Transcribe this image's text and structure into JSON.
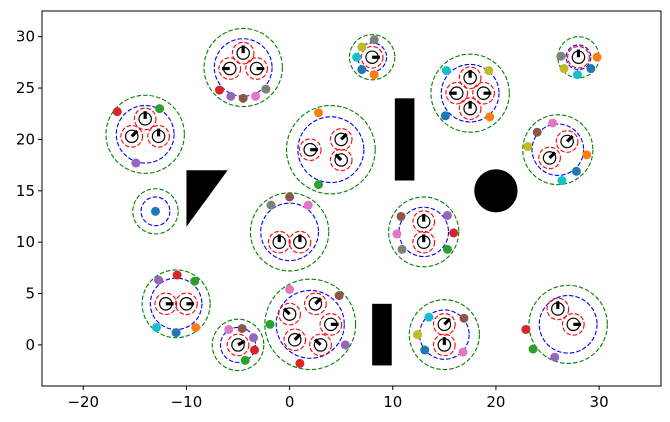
{
  "chart_data": {
    "type": "scatter",
    "title": "",
    "xlabel": "",
    "ylabel": "",
    "xlim": [
      -24,
      36
    ],
    "ylim": [
      -4,
      32.5
    ],
    "grid": false,
    "xticks": [
      -20,
      -10,
      0,
      10,
      20,
      30
    ],
    "yticks": [
      0,
      5,
      10,
      15,
      20,
      25,
      30
    ],
    "colors": {
      "outer_ring": "#008000",
      "inner_ring": "#0000ff",
      "sub_ring": "#ff0000",
      "obstacle": "#000000",
      "center_dot": "#1f77b4"
    },
    "clusters": [
      {
        "x": -4.5,
        "y": 27,
        "r_outer": 3.8,
        "r_inner": 2.8,
        "subs": [
          [
            -4.5,
            28.4,
            90
          ],
          [
            -5.8,
            26.9,
            180
          ],
          [
            -3.2,
            26.9,
            0
          ]
        ]
      },
      {
        "x": 8,
        "y": 28,
        "r_outer": 2.2,
        "r_inner": 1.4,
        "subs": [
          [
            8,
            28,
            0
          ]
        ]
      },
      {
        "x": 28,
        "y": 28,
        "r_outer": 2.0,
        "r_inner": 1.2,
        "subs": [
          [
            28,
            28,
            90
          ]
        ]
      },
      {
        "x": 17.5,
        "y": 24.5,
        "r_outer": 3.8,
        "r_inner": 2.8,
        "subs": [
          [
            17.5,
            26,
            90
          ],
          [
            16.2,
            24.5,
            180
          ],
          [
            18.8,
            24.5,
            0
          ],
          [
            17.5,
            23,
            90
          ]
        ]
      },
      {
        "x": -14,
        "y": 20.5,
        "r_outer": 3.8,
        "r_inner": 2.8,
        "subs": [
          [
            -14,
            22,
            90
          ],
          [
            -15.3,
            20.3,
            45
          ],
          [
            -12.7,
            20.3,
            90
          ]
        ]
      },
      {
        "x": 4,
        "y": 19,
        "r_outer": 4.3,
        "r_inner": 3.2,
        "subs": [
          [
            5,
            20,
            45
          ],
          [
            2,
            19,
            0
          ],
          [
            5,
            18,
            135
          ]
        ]
      },
      {
        "x": 26,
        "y": 19,
        "r_outer": 3.4,
        "r_inner": 2.5,
        "subs": [
          [
            25.2,
            18.2,
            45
          ],
          [
            26.9,
            19.8,
            45
          ]
        ]
      },
      {
        "x": -13,
        "y": 13,
        "r_outer": 2.2,
        "r_inner": 1.4,
        "subs": []
      },
      {
        "x": 0,
        "y": 11,
        "r_outer": 3.8,
        "r_inner": 2.8,
        "subs": [
          [
            -1,
            10,
            90
          ],
          [
            1,
            10,
            90
          ]
        ]
      },
      {
        "x": 13,
        "y": 11,
        "r_outer": 3.4,
        "r_inner": 2.4,
        "subs": [
          [
            13,
            12,
            90
          ],
          [
            13,
            10,
            90
          ]
        ]
      },
      {
        "x": -11,
        "y": 4,
        "r_outer": 3.3,
        "r_inner": 2.5,
        "subs": [
          [
            -12,
            4,
            0
          ],
          [
            -10,
            4,
            0
          ]
        ]
      },
      {
        "x": 2,
        "y": 2,
        "r_outer": 4.4,
        "r_inner": 3.3,
        "subs": [
          [
            0,
            3,
            135
          ],
          [
            2.5,
            4,
            45
          ],
          [
            4,
            2,
            0
          ],
          [
            0.5,
            0.5,
            45
          ],
          [
            3,
            0,
            135
          ]
        ]
      },
      {
        "x": 15,
        "y": 1,
        "r_outer": 3.4,
        "r_inner": 2.4,
        "subs": [
          [
            15,
            2,
            45
          ],
          [
            15,
            0,
            90
          ]
        ]
      },
      {
        "x": 27,
        "y": 2,
        "r_outer": 3.8,
        "r_inner": 2.8,
        "subs": [
          [
            26,
            3.5,
            90
          ],
          [
            27.5,
            2,
            0
          ]
        ]
      },
      {
        "x": -5,
        "y": 0,
        "r_outer": 2.5,
        "r_inner": 1.7,
        "subs": [
          [
            -5,
            0,
            30
          ]
        ]
      }
    ],
    "obstacles": [
      {
        "shape": "rect",
        "x0": 10.2,
        "x1": 12.1,
        "y0": 16,
        "y1": 24
      },
      {
        "shape": "rect",
        "x0": 8.0,
        "x1": 9.9,
        "y0": -2,
        "y1": 4
      },
      {
        "shape": "circle",
        "cx": 20,
        "cy": 15,
        "r": 2.1
      },
      {
        "shape": "polygon",
        "points": [
          [
            -10,
            17
          ],
          [
            -6,
            17
          ],
          [
            -10,
            11.5
          ]
        ]
      }
    ],
    "dots": [
      {
        "x": -6.8,
        "y": 24.8,
        "c": "#d62728"
      },
      {
        "x": -5.7,
        "y": 24.2,
        "c": "#9467bd"
      },
      {
        "x": -4.5,
        "y": 24.0,
        "c": "#8c564b"
      },
      {
        "x": -3.3,
        "y": 24.2,
        "c": "#e377c2"
      },
      {
        "x": -2.3,
        "y": 24.9,
        "c": "#7f7f7f"
      },
      {
        "x": 7.0,
        "y": 29.0,
        "c": "#bcbd22"
      },
      {
        "x": 8.2,
        "y": 29.7,
        "c": "#7f7f7f"
      },
      {
        "x": 6.5,
        "y": 28.0,
        "c": "#17becf"
      },
      {
        "x": 7.0,
        "y": 26.8,
        "c": "#1f77b4"
      },
      {
        "x": 8.2,
        "y": 26.3,
        "c": "#ff7f0e"
      },
      {
        "x": 26.3,
        "y": 28.1,
        "c": "#7f7f7f"
      },
      {
        "x": 29.8,
        "y": 28.0,
        "c": "#ff7f0e"
      },
      {
        "x": 26.6,
        "y": 26.9,
        "c": "#bcbd22"
      },
      {
        "x": 27.9,
        "y": 26.3,
        "c": "#17becf"
      },
      {
        "x": 29.2,
        "y": 26.9,
        "c": "#1f77b4"
      },
      {
        "x": 15.2,
        "y": 26.7,
        "c": "#17becf"
      },
      {
        "x": 19.3,
        "y": 26.7,
        "c": "#bcbd22"
      },
      {
        "x": 15.1,
        "y": 22.3,
        "c": "#1f77b4"
      },
      {
        "x": 19.4,
        "y": 22.2,
        "c": "#ff7f0e"
      },
      {
        "x": -16.7,
        "y": 22.7,
        "c": "#d62728"
      },
      {
        "x": -12.6,
        "y": 23.0,
        "c": "#2ca02c"
      },
      {
        "x": -14.9,
        "y": 17.7,
        "c": "#9467bd"
      },
      {
        "x": 2.8,
        "y": 22.6,
        "c": "#ff7f0e"
      },
      {
        "x": 2.8,
        "y": 15.6,
        "c": "#2ca02c"
      },
      {
        "x": 23.1,
        "y": 19.3,
        "c": "#bcbd22"
      },
      {
        "x": 24.0,
        "y": 20.7,
        "c": "#8c564b"
      },
      {
        "x": 25.5,
        "y": 21.6,
        "c": "#e377c2"
      },
      {
        "x": 28.8,
        "y": 18.5,
        "c": "#ff7f0e"
      },
      {
        "x": 27.8,
        "y": 16.9,
        "c": "#1f77b4"
      },
      {
        "x": 26.4,
        "y": 16.0,
        "c": "#17becf"
      },
      {
        "x": -13.0,
        "y": 13.0,
        "c": "#1f77b4"
      },
      {
        "x": -1.8,
        "y": 13.6,
        "c": "#7f7f7f"
      },
      {
        "x": 0.0,
        "y": 14.4,
        "c": "#8c564b"
      },
      {
        "x": 1.8,
        "y": 13.6,
        "c": "#e377c2"
      },
      {
        "x": 10.8,
        "y": 12.5,
        "c": "#8c564b"
      },
      {
        "x": 15.3,
        "y": 12.6,
        "c": "#9467bd"
      },
      {
        "x": 10.4,
        "y": 10.8,
        "c": "#e377c2"
      },
      {
        "x": 15.9,
        "y": 10.9,
        "c": "#d62728"
      },
      {
        "x": 10.9,
        "y": 9.3,
        "c": "#7f7f7f"
      },
      {
        "x": 15.3,
        "y": 9.3,
        "c": "#2ca02c"
      },
      {
        "x": -12.7,
        "y": 6.3,
        "c": "#9467bd"
      },
      {
        "x": -10.9,
        "y": 6.8,
        "c": "#d62728"
      },
      {
        "x": -9.2,
        "y": 6.2,
        "c": "#2ca02c"
      },
      {
        "x": -12.9,
        "y": 1.7,
        "c": "#17becf"
      },
      {
        "x": -11.0,
        "y": 1.2,
        "c": "#1f77b4"
      },
      {
        "x": -9.1,
        "y": 1.7,
        "c": "#ff7f0e"
      },
      {
        "x": 0.0,
        "y": 5.4,
        "c": "#e377c2"
      },
      {
        "x": 4.8,
        "y": 4.8,
        "c": "#8c564b"
      },
      {
        "x": -1.9,
        "y": 2.0,
        "c": "#2ca02c"
      },
      {
        "x": 5.4,
        "y": 0.0,
        "c": "#9467bd"
      },
      {
        "x": 1.0,
        "y": -1.8,
        "c": "#d62728"
      },
      {
        "x": 13.5,
        "y": 2.7,
        "c": "#17becf"
      },
      {
        "x": 16.9,
        "y": 2.6,
        "c": "#8c564b"
      },
      {
        "x": 12.4,
        "y": 1.0,
        "c": "#bcbd22"
      },
      {
        "x": 13.1,
        "y": -0.5,
        "c": "#1f77b4"
      },
      {
        "x": 16.8,
        "y": -0.7,
        "c": "#e377c2"
      },
      {
        "x": 22.9,
        "y": 1.5,
        "c": "#d62728"
      },
      {
        "x": 23.6,
        "y": -0.4,
        "c": "#2ca02c"
      },
      {
        "x": 25.7,
        "y": -1.2,
        "c": "#9467bd"
      },
      {
        "x": -5.9,
        "y": 1.5,
        "c": "#e377c2"
      },
      {
        "x": -4.6,
        "y": 1.6,
        "c": "#8c564b"
      },
      {
        "x": -3.5,
        "y": 0.7,
        "c": "#9467bd"
      },
      {
        "x": -3.4,
        "y": -0.5,
        "c": "#d62728"
      },
      {
        "x": -4.3,
        "y": -1.5,
        "c": "#2ca02c"
      }
    ]
  }
}
